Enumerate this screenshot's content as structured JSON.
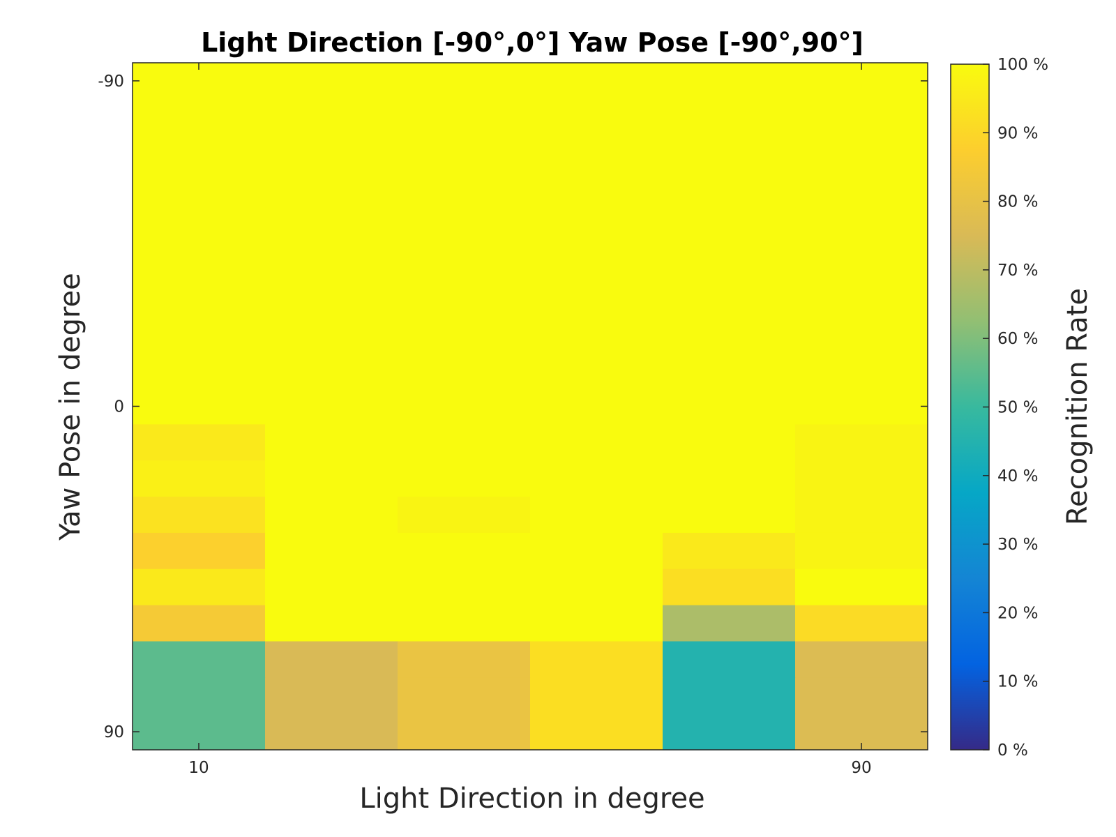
{
  "chart_data": {
    "type": "heatmap",
    "title": "Light Direction [-90°,0°] Yaw Pose [-90°,90°]",
    "xlabel": "Light Direction in degree",
    "ylabel": "Yaw Pose in degree",
    "colorbar_label": "Recognition Rate",
    "x": [
      10,
      25,
      40,
      55,
      70,
      90
    ],
    "x_tick_labels": [
      {
        "value": 10,
        "label": "10"
      },
      {
        "value": 90,
        "label": "90"
      }
    ],
    "y": [
      -90,
      -80,
      -70,
      -60,
      -50,
      -40,
      -30,
      -20,
      -10,
      0,
      10,
      20,
      30,
      40,
      50,
      60,
      70,
      80,
      90
    ],
    "y_tick_labels": [
      {
        "value": -90,
        "label": "-90"
      },
      {
        "value": 0,
        "label": "0"
      },
      {
        "value": 90,
        "label": "90"
      }
    ],
    "y_direction": "top-to-bottom",
    "values": [
      [
        100,
        100,
        100,
        100,
        100,
        100
      ],
      [
        100,
        100,
        100,
        100,
        100,
        100
      ],
      [
        100,
        100,
        100,
        100,
        100,
        100
      ],
      [
        100,
        100,
        100,
        100,
        100,
        100
      ],
      [
        100,
        100,
        100,
        100,
        100,
        100
      ],
      [
        100,
        100,
        100,
        100,
        100,
        100
      ],
      [
        100,
        100,
        100,
        100,
        100,
        100
      ],
      [
        100,
        100,
        100,
        100,
        100,
        100
      ],
      [
        100,
        100,
        100,
        100,
        100,
        100
      ],
      [
        100,
        100,
        100,
        100,
        100,
        100
      ],
      [
        95,
        100,
        100,
        100,
        100,
        98
      ],
      [
        97,
        100,
        100,
        100,
        100,
        98
      ],
      [
        93,
        100,
        98,
        100,
        100,
        98
      ],
      [
        88,
        100,
        100,
        100,
        95,
        98
      ],
      [
        95,
        100,
        100,
        100,
        92,
        100
      ],
      [
        85,
        100,
        100,
        100,
        67,
        91
      ],
      [
        55,
        75,
        81,
        92,
        45,
        76
      ],
      [
        55,
        75,
        81,
        92,
        45,
        76
      ],
      [
        55,
        75,
        81,
        92,
        45,
        76
      ]
    ],
    "colorbar": {
      "min": 0,
      "max": 100,
      "ticks": [
        "0 %",
        "10 %",
        "20 %",
        "30 %",
        "40 %",
        "50 %",
        "60 %",
        "70 %",
        "80 %",
        "90 %",
        "100 %"
      ],
      "colormap": "parula",
      "colors": [
        "#352a87",
        "#0363e1",
        "#1485d4",
        "#06a7c6",
        "#38b99e",
        "#92bf73",
        "#d9ba56",
        "#fcce2e",
        "#f9fb0e"
      ]
    }
  }
}
